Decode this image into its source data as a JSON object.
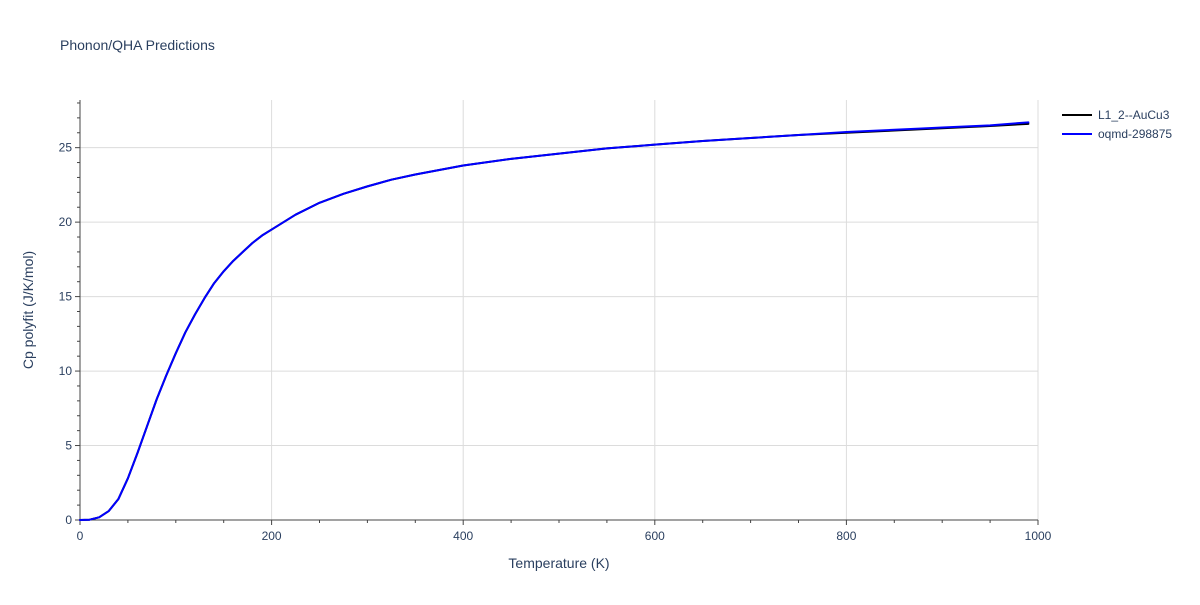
{
  "chart_data": {
    "type": "line",
    "title": "Phonon/QHA Predictions",
    "xlabel": "Temperature (K)",
    "ylabel": "Cp polyfit (J/K/mol)",
    "xlim": [
      0,
      1000
    ],
    "ylim": [
      0,
      28.2
    ],
    "x_ticks": [
      0,
      200,
      400,
      600,
      800,
      1000
    ],
    "y_ticks": [
      0,
      5,
      10,
      15,
      20,
      25
    ],
    "x_tick_labels": [
      "0",
      "200",
      "400",
      "600",
      "800",
      "1000"
    ],
    "y_tick_labels": [
      "0",
      "5",
      "10",
      "15",
      "20",
      "25"
    ],
    "x_minor_step": 50,
    "y_minor_step": 1,
    "grid": true,
    "legend_position": "top-right",
    "series": [
      {
        "name": "L1_2--AuCu3",
        "color": "#000000",
        "x": [
          0,
          10,
          20,
          30,
          40,
          50,
          60,
          70,
          80,
          90,
          100,
          110,
          120,
          130,
          140,
          150,
          160,
          170,
          180,
          190,
          200,
          225,
          250,
          275,
          300,
          325,
          350,
          375,
          400,
          450,
          500,
          550,
          600,
          650,
          700,
          750,
          800,
          850,
          900,
          950,
          990
        ],
        "y": [
          0,
          0.02,
          0.18,
          0.6,
          1.4,
          2.8,
          4.5,
          6.3,
          8.1,
          9.7,
          11.2,
          12.6,
          13.8,
          14.9,
          15.9,
          16.7,
          17.4,
          18.0,
          18.6,
          19.1,
          19.5,
          20.5,
          21.3,
          21.9,
          22.4,
          22.85,
          23.2,
          23.5,
          23.8,
          24.25,
          24.6,
          24.95,
          25.2,
          25.45,
          25.65,
          25.85,
          26.0,
          26.15,
          26.3,
          26.45,
          26.6
        ]
      },
      {
        "name": "oqmd-298875",
        "color": "#0000ff",
        "x": [
          0,
          10,
          20,
          30,
          40,
          50,
          60,
          70,
          80,
          90,
          100,
          110,
          120,
          130,
          140,
          150,
          160,
          170,
          180,
          190,
          200,
          225,
          250,
          275,
          300,
          325,
          350,
          375,
          400,
          450,
          500,
          550,
          600,
          650,
          700,
          750,
          800,
          850,
          900,
          950,
          990
        ],
        "y": [
          0,
          0.02,
          0.18,
          0.6,
          1.4,
          2.8,
          4.5,
          6.3,
          8.1,
          9.7,
          11.2,
          12.6,
          13.8,
          14.9,
          15.9,
          16.7,
          17.4,
          18.0,
          18.6,
          19.1,
          19.5,
          20.5,
          21.3,
          21.9,
          22.4,
          22.85,
          23.2,
          23.5,
          23.8,
          24.25,
          24.6,
          24.95,
          25.2,
          25.45,
          25.65,
          25.85,
          26.05,
          26.2,
          26.35,
          26.5,
          26.7
        ]
      }
    ]
  }
}
